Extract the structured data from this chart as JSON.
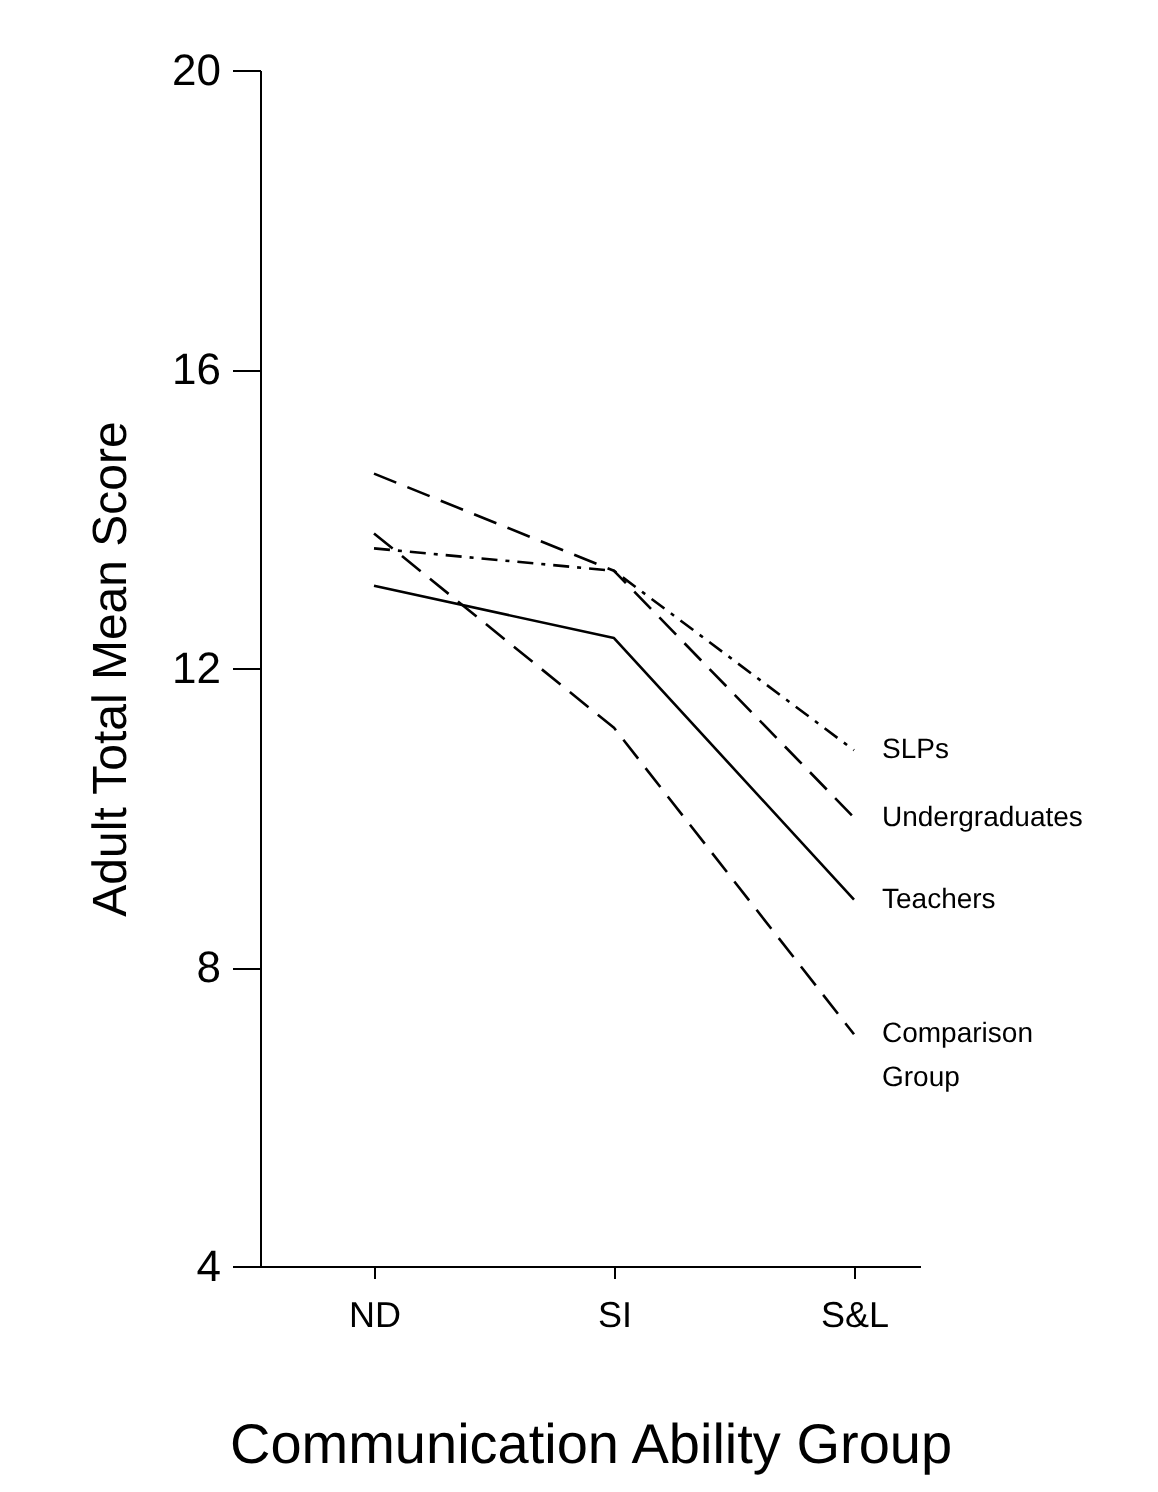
{
  "chart_data": {
    "type": "line",
    "xlabel": "Communication Ability Group",
    "ylabel": "Adult Total Mean Score",
    "categories": [
      "ND",
      "SI",
      "S&L"
    ],
    "series": [
      {
        "name": "SLPs",
        "color": "#000000",
        "line_style": "dotted",
        "values": [
          13.6,
          13.3,
          10.9
        ]
      },
      {
        "name": "Undergraduates",
        "color": "#000000",
        "line_style": "dashed",
        "values": [
          14.6,
          13.3,
          10.0
        ]
      },
      {
        "name": "Teachers",
        "color": "#000000",
        "line_style": "solid",
        "values": [
          13.1,
          12.4,
          8.9
        ]
      },
      {
        "name": "Comparison Group",
        "color": "#000000",
        "line_style": "dashed",
        "values": [
          13.8,
          11.2,
          7.1
        ]
      }
    ],
    "ylim": [
      4,
      20
    ],
    "yticks": [
      4,
      8,
      12,
      16,
      20
    ],
    "grid": false,
    "legend": false,
    "marker": "none"
  }
}
